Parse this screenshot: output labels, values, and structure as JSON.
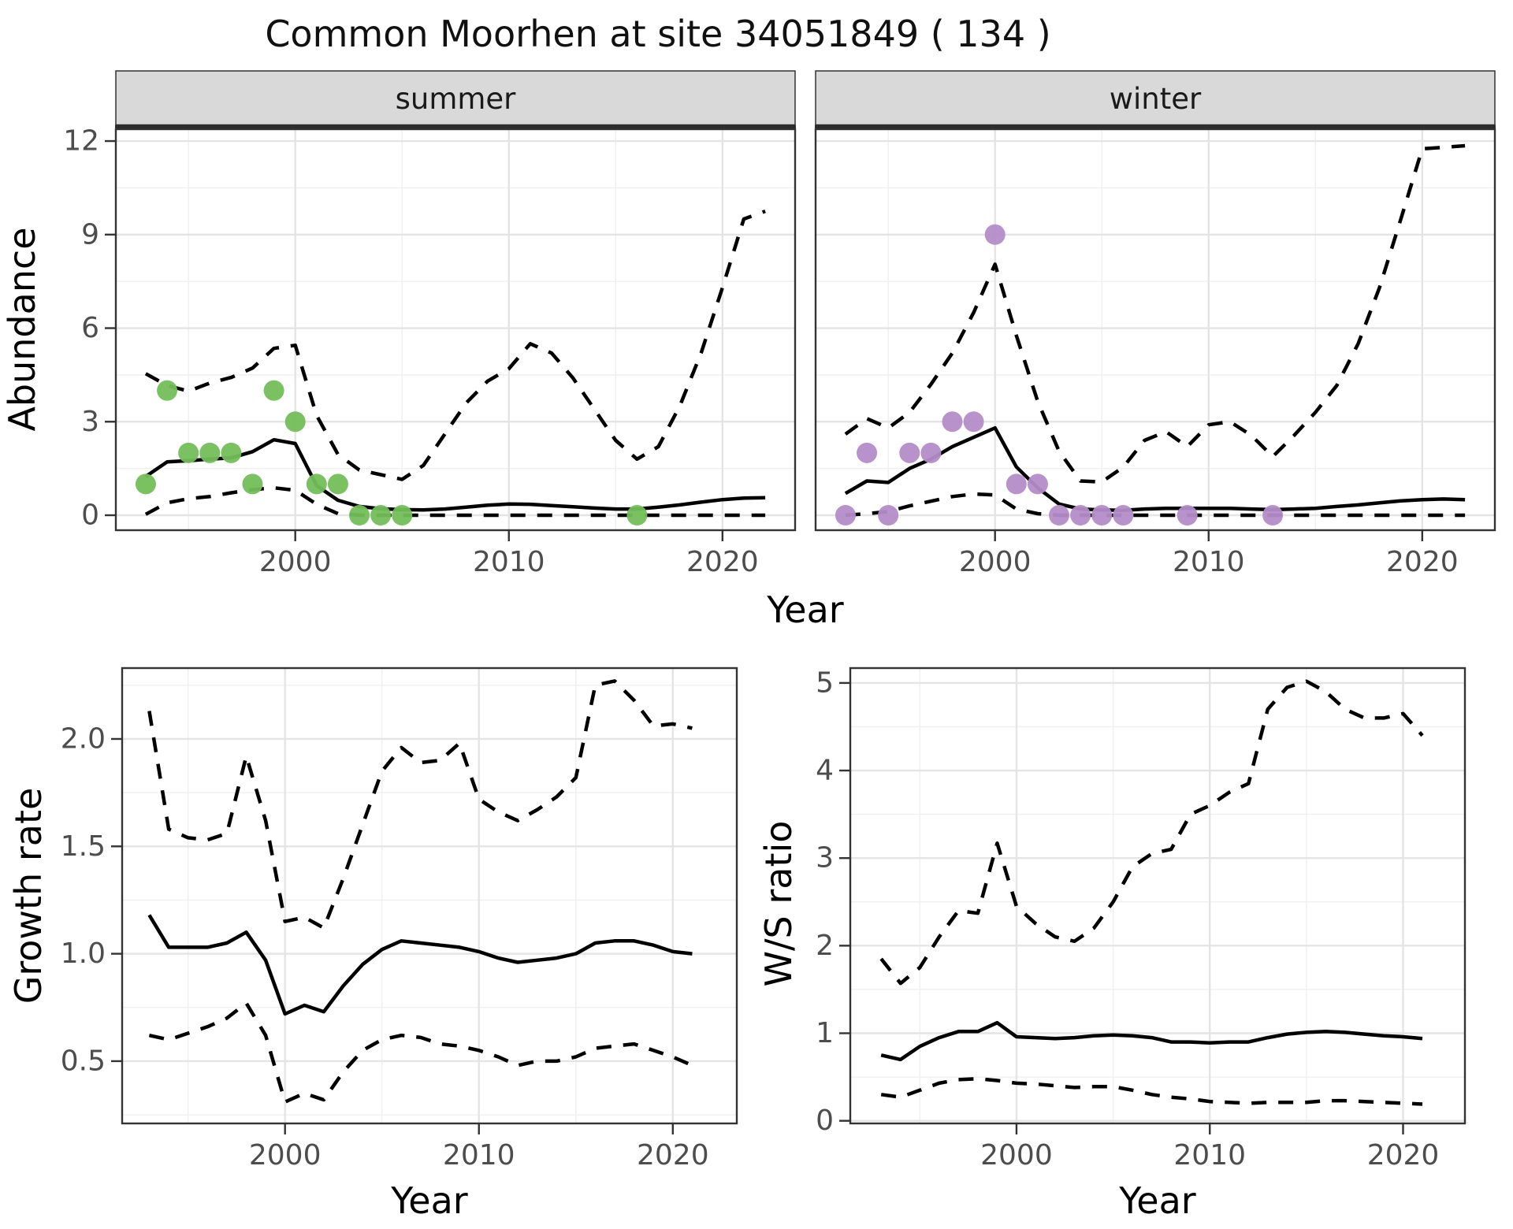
{
  "title": "Common Moorhen at site 34051849 ( 134 )",
  "style": {
    "summer_point_color": "#72BE58",
    "winter_point_color": "#B48CC8",
    "line_color": "#000000",
    "grid_major_color": "#E4E4E4",
    "grid_minor_color": "#F0F0F0",
    "panel_border_color": "#333333",
    "strip_bg_color": "#D9D9D9",
    "tick_text_color": "#4D4D4D",
    "background_color": "#FFFFFF"
  },
  "chart_data": [
    {
      "id": "abundance_summer",
      "type": "line",
      "facet_label": "summer",
      "xlabel": "Year",
      "ylabel": "Abundance",
      "xticks": [
        2000,
        2010,
        2020
      ],
      "xtick_labels": [
        "2000",
        "2010",
        "2020"
      ],
      "yticks": [
        0,
        3,
        6,
        9,
        12
      ],
      "ytick_labels": [
        "0",
        "3",
        "6",
        "9",
        "12"
      ],
      "xlim": [
        1991.6,
        2023.4
      ],
      "ylim": [
        -0.48,
        12.38
      ],
      "grid": true,
      "legend": "none",
      "x": [
        1993,
        1994,
        1995,
        1996,
        1997,
        1998,
        1999,
        2000,
        2001,
        2002,
        2003,
        2004,
        2005,
        2006,
        2007,
        2008,
        2009,
        2010,
        2011,
        2012,
        2013,
        2014,
        2015,
        2016,
        2017,
        2018,
        2019,
        2020,
        2021,
        2022
      ],
      "series": [
        {
          "name": "median",
          "style": "solid",
          "values": [
            1.24,
            1.71,
            1.75,
            1.8,
            1.84,
            2.04,
            2.42,
            2.3,
            0.95,
            0.48,
            0.28,
            0.21,
            0.18,
            0.17,
            0.2,
            0.26,
            0.32,
            0.36,
            0.35,
            0.31,
            0.27,
            0.23,
            0.2,
            0.2,
            0.26,
            0.33,
            0.42,
            0.5,
            0.55,
            0.56
          ]
        },
        {
          "name": "upper_ci",
          "style": "dashed",
          "values": [
            4.54,
            4.16,
            3.98,
            4.24,
            4.42,
            4.72,
            5.35,
            5.45,
            3.2,
            1.95,
            1.45,
            1.3,
            1.15,
            1.6,
            2.6,
            3.6,
            4.3,
            4.7,
            5.5,
            5.2,
            4.4,
            3.4,
            2.4,
            1.8,
            2.2,
            3.5,
            5.2,
            7.3,
            9.5,
            9.75
          ]
        },
        {
          "name": "lower_ci",
          "style": "dashed",
          "values": [
            0.03,
            0.4,
            0.53,
            0.6,
            0.72,
            0.82,
            0.88,
            0.8,
            0.35,
            0.05,
            0,
            0,
            0,
            0,
            0,
            0,
            0,
            0,
            0,
            0,
            0,
            0,
            0,
            0,
            0,
            0,
            0,
            0,
            0,
            0
          ]
        }
      ],
      "points_name": "observed_counts",
      "point_color": "#72BE58",
      "points": [
        [
          1993,
          1
        ],
        [
          1994,
          4
        ],
        [
          1995,
          2
        ],
        [
          1996,
          2
        ],
        [
          1997,
          2
        ],
        [
          1998,
          1
        ],
        [
          1999,
          4
        ],
        [
          2000,
          3
        ],
        [
          2001,
          1
        ],
        [
          2002,
          1
        ],
        [
          2003,
          0
        ],
        [
          2004,
          0
        ],
        [
          2005,
          0
        ],
        [
          2016,
          0
        ]
      ]
    },
    {
      "id": "abundance_winter",
      "type": "line",
      "facet_label": "winter",
      "xlabel": "Year",
      "ylabel": "Abundance",
      "xticks": [
        2000,
        2010,
        2020
      ],
      "xtick_labels": [
        "2000",
        "2010",
        "2020"
      ],
      "yticks": [
        0,
        3,
        6,
        9,
        12
      ],
      "ytick_labels": [
        "0",
        "3",
        "6",
        "9",
        "12"
      ],
      "xlim": [
        1991.6,
        2023.4
      ],
      "ylim": [
        -0.48,
        12.38
      ],
      "grid": true,
      "legend": "none",
      "x": [
        1993,
        1994,
        1995,
        1996,
        1997,
        1998,
        1999,
        2000,
        2001,
        2002,
        2003,
        2004,
        2005,
        2006,
        2007,
        2008,
        2009,
        2010,
        2011,
        2012,
        2013,
        2014,
        2015,
        2016,
        2017,
        2018,
        2019,
        2020,
        2021,
        2022
      ],
      "series": [
        {
          "name": "median",
          "style": "solid",
          "values": [
            0.7,
            1.1,
            1.05,
            1.5,
            1.8,
            2.2,
            2.5,
            2.8,
            1.55,
            0.88,
            0.36,
            0.2,
            0.17,
            0.16,
            0.2,
            0.22,
            0.22,
            0.22,
            0.22,
            0.2,
            0.18,
            0.2,
            0.22,
            0.28,
            0.33,
            0.4,
            0.46,
            0.5,
            0.52,
            0.5
          ]
        },
        {
          "name": "upper_ci",
          "style": "dashed",
          "values": [
            2.6,
            3.1,
            2.8,
            3.3,
            4.2,
            5.2,
            6.5,
            8.05,
            5.76,
            3.65,
            2.05,
            1.1,
            1.07,
            1.54,
            2.4,
            2.68,
            2.2,
            2.9,
            3.0,
            2.56,
            1.88,
            2.56,
            3.3,
            4.16,
            5.5,
            7.3,
            9.5,
            11.75,
            11.8,
            11.85
          ]
        },
        {
          "name": "lower_ci",
          "style": "dashed",
          "values": [
            0.0,
            0.05,
            0.12,
            0.3,
            0.45,
            0.6,
            0.68,
            0.65,
            0.2,
            0.05,
            0,
            0,
            0,
            0,
            0,
            0,
            0,
            0,
            0,
            0,
            0,
            0,
            0,
            0,
            0,
            0,
            0,
            0,
            0,
            0
          ]
        }
      ],
      "points_name": "observed_counts",
      "point_color": "#B48CC8",
      "points": [
        [
          1993,
          0
        ],
        [
          1994,
          2
        ],
        [
          1995,
          0
        ],
        [
          1996,
          2
        ],
        [
          1997,
          2
        ],
        [
          1998,
          3
        ],
        [
          1999,
          3
        ],
        [
          2000,
          9
        ],
        [
          2001,
          1
        ],
        [
          2002,
          1
        ],
        [
          2003,
          0
        ],
        [
          2004,
          0
        ],
        [
          2005,
          0
        ],
        [
          2006,
          0
        ],
        [
          2009,
          0
        ],
        [
          2013,
          0
        ]
      ]
    },
    {
      "id": "growth_rate",
      "type": "line",
      "facet_label": "",
      "xlabel": "Year",
      "ylabel": "Growth rate",
      "xticks": [
        2000,
        2010,
        2020
      ],
      "xtick_labels": [
        "2000",
        "2010",
        "2020"
      ],
      "yticks": [
        0.5,
        1.0,
        1.5,
        2.0
      ],
      "ytick_labels": [
        "0.5",
        "1.0",
        "1.5",
        "2.0"
      ],
      "xlim": [
        1991.6,
        2023.3
      ],
      "ylim": [
        0.21,
        2.33
      ],
      "grid": true,
      "legend": "none",
      "x": [
        1993,
        1994,
        1995,
        1996,
        1997,
        1998,
        1999,
        2000,
        2001,
        2002,
        2003,
        2004,
        2005,
        2006,
        2007,
        2008,
        2009,
        2010,
        2011,
        2012,
        2013,
        2014,
        2015,
        2016,
        2017,
        2018,
        2019,
        2020,
        2021
      ],
      "series": [
        {
          "name": "median",
          "style": "solid",
          "values": [
            1.18,
            1.03,
            1.03,
            1.03,
            1.05,
            1.1,
            0.97,
            0.72,
            0.76,
            0.73,
            0.85,
            0.95,
            1.02,
            1.06,
            1.05,
            1.04,
            1.03,
            1.01,
            0.98,
            0.96,
            0.97,
            0.98,
            1.0,
            1.05,
            1.06,
            1.06,
            1.04,
            1.01,
            1.0
          ]
        },
        {
          "name": "upper_ci",
          "style": "dashed",
          "values": [
            2.13,
            1.58,
            1.54,
            1.53,
            1.56,
            1.92,
            1.62,
            1.15,
            1.17,
            1.12,
            1.35,
            1.6,
            1.85,
            1.96,
            1.89,
            1.9,
            1.98,
            1.72,
            1.66,
            1.62,
            1.67,
            1.73,
            1.82,
            2.25,
            2.27,
            2.18,
            2.06,
            2.07,
            2.05
          ]
        },
        {
          "name": "lower_ci",
          "style": "dashed",
          "values": [
            0.62,
            0.6,
            0.63,
            0.66,
            0.7,
            0.77,
            0.62,
            0.31,
            0.35,
            0.32,
            0.45,
            0.55,
            0.6,
            0.62,
            0.61,
            0.58,
            0.57,
            0.55,
            0.52,
            0.48,
            0.5,
            0.5,
            0.52,
            0.56,
            0.57,
            0.58,
            0.55,
            0.52,
            0.48
          ]
        }
      ],
      "points": []
    },
    {
      "id": "ws_ratio",
      "type": "line",
      "facet_label": "",
      "xlabel": "Year",
      "ylabel": "W/S ratio",
      "xticks": [
        2000,
        2010,
        2020
      ],
      "xtick_labels": [
        "2000",
        "2010",
        "2020"
      ],
      "yticks": [
        0,
        1,
        2,
        3,
        4,
        5
      ],
      "ytick_labels": [
        "0",
        "1",
        "2",
        "3",
        "4",
        "5"
      ],
      "xlim": [
        1991.4,
        2023.2
      ],
      "ylim": [
        -0.03,
        5.17
      ],
      "grid": true,
      "legend": "none",
      "x": [
        1993,
        1994,
        1995,
        1996,
        1997,
        1998,
        1999,
        2000,
        2001,
        2002,
        2003,
        2004,
        2005,
        2006,
        2007,
        2008,
        2009,
        2010,
        2011,
        2012,
        2013,
        2014,
        2015,
        2016,
        2017,
        2018,
        2019,
        2020,
        2021
      ],
      "series": [
        {
          "name": "median",
          "style": "solid",
          "values": [
            0.75,
            0.7,
            0.85,
            0.95,
            1.02,
            1.02,
            1.12,
            0.96,
            0.95,
            0.94,
            0.95,
            0.97,
            0.98,
            0.97,
            0.95,
            0.9,
            0.9,
            0.89,
            0.9,
            0.9,
            0.95,
            0.99,
            1.01,
            1.02,
            1.01,
            0.99,
            0.97,
            0.96,
            0.94
          ]
        },
        {
          "name": "upper_ci",
          "style": "dashed",
          "values": [
            1.85,
            1.57,
            1.75,
            2.1,
            2.4,
            2.37,
            3.17,
            2.45,
            2.25,
            2.1,
            2.05,
            2.2,
            2.5,
            2.9,
            3.05,
            3.1,
            3.5,
            3.6,
            3.75,
            3.85,
            4.7,
            4.95,
            5.02,
            4.9,
            4.7,
            4.6,
            4.6,
            4.65,
            4.4
          ]
        },
        {
          "name": "lower_ci",
          "style": "dashed",
          "values": [
            0.3,
            0.27,
            0.35,
            0.43,
            0.47,
            0.48,
            0.46,
            0.43,
            0.42,
            0.4,
            0.38,
            0.39,
            0.39,
            0.35,
            0.3,
            0.27,
            0.25,
            0.22,
            0.21,
            0.2,
            0.21,
            0.21,
            0.21,
            0.23,
            0.23,
            0.22,
            0.21,
            0.2,
            0.19
          ]
        }
      ],
      "points": []
    }
  ]
}
